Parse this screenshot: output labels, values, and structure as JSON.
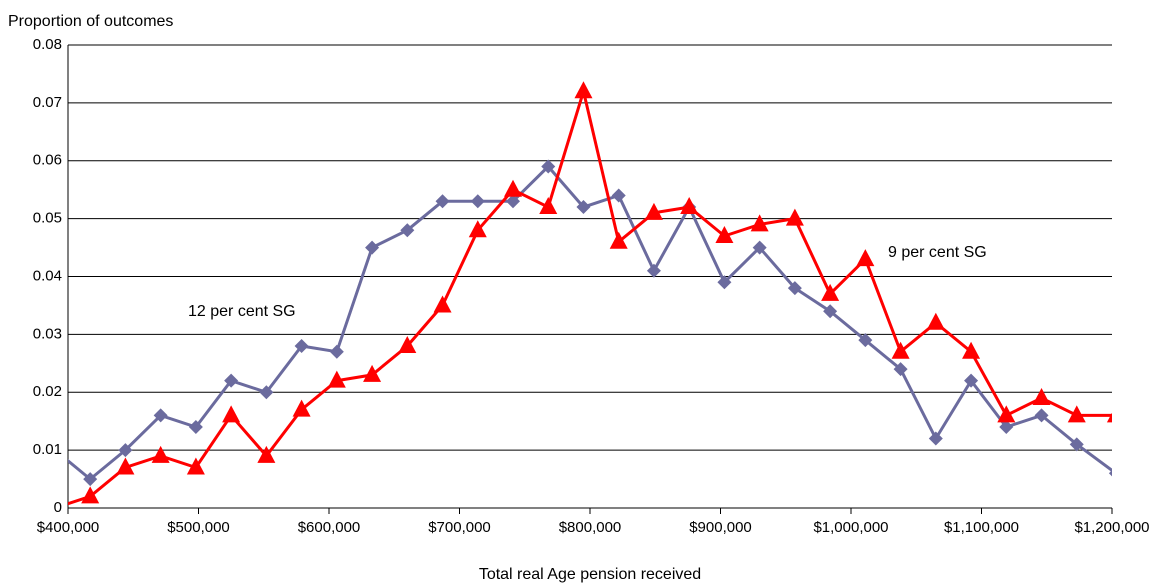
{
  "chart_data": {
    "type": "line",
    "y_title": "Proportion of outcomes",
    "x_title": "Total real  Age pension received",
    "x": [
      390000,
      417000,
      444000,
      471000,
      498000,
      525000,
      552000,
      579000,
      606000,
      633000,
      660000,
      687000,
      714000,
      741000,
      768000,
      795000,
      822000,
      849000,
      876000,
      903000,
      930000,
      957000,
      984000,
      1011000,
      1038000,
      1065000,
      1092000,
      1119000,
      1146000,
      1173000,
      1203000
    ],
    "series": [
      {
        "name": "12 per cent SG",
        "color": "#6b6b9e",
        "marker": "diamond",
        "values": [
          0.01,
          0.005,
          0.01,
          0.016,
          0.014,
          0.022,
          0.02,
          0.028,
          0.027,
          0.045,
          0.048,
          0.053,
          0.053,
          0.053,
          0.059,
          0.052,
          0.054,
          0.041,
          0.052,
          0.039,
          0.045,
          0.038,
          0.034,
          0.029,
          0.024,
          0.012,
          0.022,
          0.014,
          0.016,
          0.011,
          0.006
        ]
      },
      {
        "name": "9 per cent SG",
        "color": "#ff0000",
        "marker": "triangle",
        "values": [
          0.0,
          0.002,
          0.007,
          0.009,
          0.007,
          0.016,
          0.009,
          0.017,
          0.022,
          0.023,
          0.028,
          0.035,
          0.048,
          0.055,
          0.052,
          0.072,
          0.046,
          0.051,
          0.052,
          0.047,
          0.049,
          0.05,
          0.037,
          0.043,
          0.027,
          0.032,
          0.027,
          0.016,
          0.019,
          0.016,
          0.016
        ]
      }
    ],
    "xlim": [
      400000,
      1200000
    ],
    "xticks": [
      {
        "value": 400000,
        "label": "$400,000"
      },
      {
        "value": 500000,
        "label": "$500,000"
      },
      {
        "value": 600000,
        "label": "$600,000"
      },
      {
        "value": 700000,
        "label": "$700,000"
      },
      {
        "value": 800000,
        "label": "$800,000"
      },
      {
        "value": 900000,
        "label": "$900,000"
      },
      {
        "value": 1000000,
        "label": "$1,000,000"
      },
      {
        "value": 1100000,
        "label": "$1,100,000"
      },
      {
        "value": 1200000,
        "label": "$1,200,000"
      }
    ],
    "ylim": [
      0,
      0.08
    ],
    "yticks": [
      0,
      0.01,
      0.02,
      0.03,
      0.04,
      0.05,
      0.06,
      0.07,
      0.08
    ],
    "grid": true
  }
}
